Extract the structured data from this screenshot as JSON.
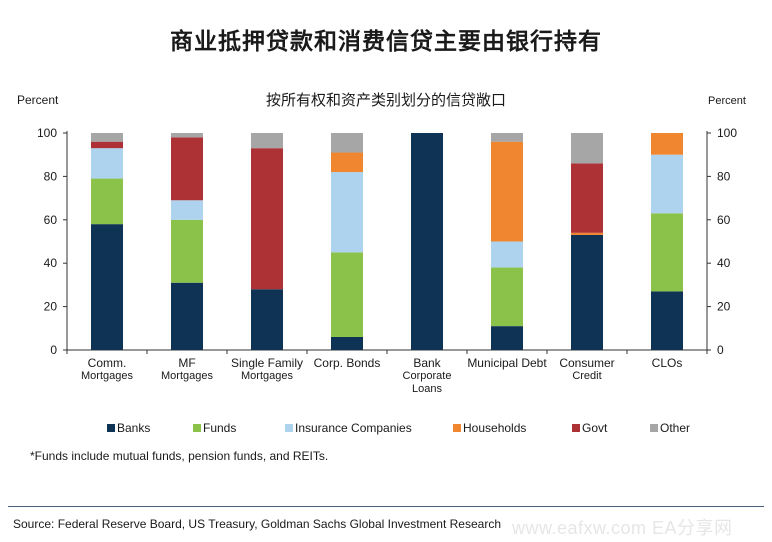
{
  "title": "商业抵押贷款和消费信贷主要由银行持有",
  "subtitle": "按所有权和资产类别划分的信贷敞口",
  "footnote": "*Funds include mutual funds, pension funds, and REITs.",
  "source": "Source: Federal Reserve Board, US Treasury, Goldman Sachs Global Investment Research",
  "watermark": "www.eafxw.com  EA分享网",
  "chart_data": {
    "type": "bar",
    "stacked": true,
    "ylabel_left": "Percent",
    "ylabel_right": "Percent",
    "ylim": [
      0,
      100
    ],
    "yticks": [
      0,
      20,
      40,
      60,
      80,
      100
    ],
    "grid": false,
    "legend_position": "bottom",
    "categories": [
      [
        "Comm.",
        "Mortgages"
      ],
      [
        "MF",
        "Mortgages"
      ],
      [
        "Single Family",
        "Mortgages"
      ],
      [
        "Corp. Bonds"
      ],
      [
        "Bank",
        "Corporate",
        "Loans"
      ],
      [
        "Municipal Debt"
      ],
      [
        "Consumer",
        "Credit"
      ],
      [
        "CLOs"
      ]
    ],
    "series": [
      {
        "name": "Banks",
        "color": "#0e3354",
        "values": [
          58,
          31,
          28,
          6,
          100,
          11,
          53,
          27
        ]
      },
      {
        "name": "Funds",
        "color": "#8bc34a",
        "values": [
          21,
          29,
          0,
          39,
          0,
          27,
          0,
          36
        ]
      },
      {
        "name": "Insurance Companies",
        "color": "#aed3ee",
        "values": [
          14,
          9,
          0,
          37,
          0,
          12,
          0,
          27
        ]
      },
      {
        "name": "Households",
        "color": "#f08730",
        "values": [
          0,
          0,
          0,
          9,
          0,
          46,
          1,
          10
        ]
      },
      {
        "name": "Govt",
        "color": "#ad3236",
        "values": [
          3,
          29,
          65,
          0,
          0,
          0,
          32,
          0
        ]
      },
      {
        "name": "Other",
        "color": "#a6a6a6",
        "values": [
          4,
          2,
          7,
          9,
          0,
          4,
          14,
          0
        ]
      }
    ]
  }
}
